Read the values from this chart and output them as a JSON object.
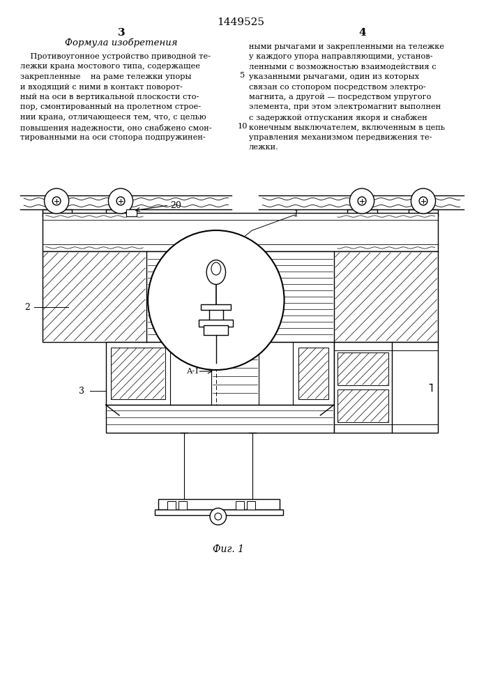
{
  "patent_number": "1449525",
  "page_left": "3",
  "page_right": "4",
  "section_title": "Формула изобретения",
  "left_col_lines": [
    "    Противоугонное устройство приводной те-",
    "лежки крана мостового типа, содержащее",
    "закрепленные    на раме тележки упоры",
    "и входящий с ними в контакт поворот-",
    "ный на оси в вертикальной плоскости сто-",
    "пор, смонтированный на пролетном строе-",
    "нии крана, отличающееся тем, что, с целью",
    "повышения надежности, оно снабжено смон-",
    "тированными на оси стопора подпружинен-"
  ],
  "right_col_lines": [
    "ными рычагами и закрепленными на тележке",
    "у каждого упора направляющими, установ-",
    "ленными с возможностью взаимодействия с",
    "указанными рычагами, один из которых",
    "связан со стопором посредством электро-",
    "магнита, а другой — посредством упругого",
    "элемента, при этом электромагнит выполнен",
    "с задержкой отпускания якоря и снабжен",
    "конечным выключателем, включенным в цепь",
    "управления механизмом передвижения те-",
    "лежки."
  ],
  "line_num_5": "5",
  "line_num_10": "10",
  "fig_label": "Фиг. 1",
  "bg": "#ffffff",
  "fg": "#000000"
}
